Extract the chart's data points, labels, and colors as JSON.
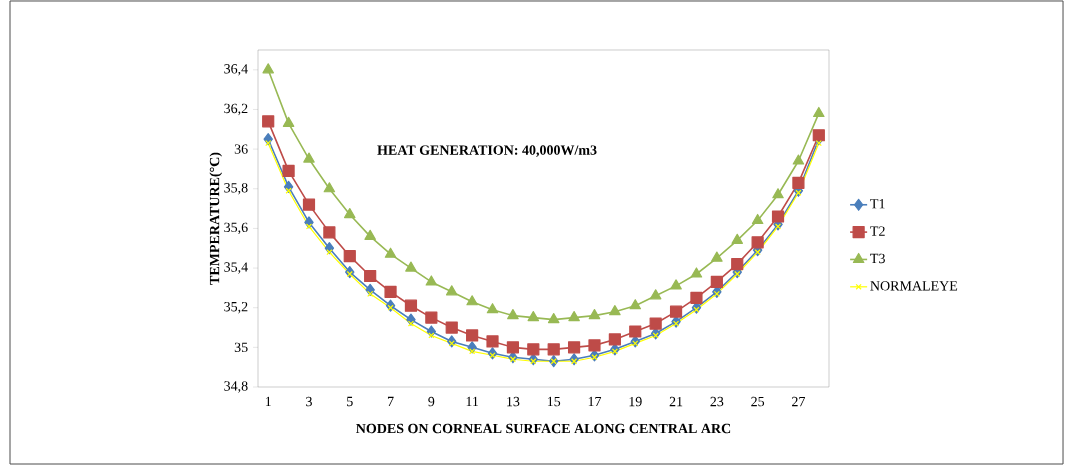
{
  "chart_data": {
    "type": "line",
    "xlabel": "NODES ON CORNEAL SURFACE ALONG CENTRAL ARC",
    "ylabel": "TEMPERATURE(°C)",
    "annotations": [
      "HEAT GENERATION: 40,000W/m3"
    ],
    "categories": [
      "1",
      null,
      "3",
      null,
      "5",
      null,
      "7",
      null,
      "9",
      null,
      "11",
      null,
      "13",
      null,
      "15",
      null,
      "17",
      null,
      "19",
      null,
      "21",
      null,
      "23",
      null,
      "25",
      null,
      "27",
      null
    ],
    "ylim": [
      34.8,
      36.5
    ],
    "yticks": [
      {
        "value": 34.8,
        "label": "34,8"
      },
      35,
      {
        "value": 35.2,
        "label": "35,2"
      },
      {
        "value": 35.4,
        "label": "35,4"
      },
      {
        "value": 35.6,
        "label": "35,6"
      },
      {
        "value": 35.8,
        "label": "35,8"
      },
      36,
      {
        "value": 36.2,
        "label": "36,2"
      },
      {
        "value": 36.4,
        "label": "36,4"
      }
    ],
    "legend": "right",
    "grid": false,
    "series": [
      {
        "name": "T1",
        "color": "#4a7ebb",
        "marker": "diamond",
        "values": [
          36.05,
          35.81,
          35.63,
          35.5,
          35.38,
          35.29,
          35.21,
          35.14,
          35.08,
          35.03,
          35.0,
          34.97,
          34.95,
          34.94,
          34.93,
          34.94,
          34.96,
          34.99,
          35.03,
          35.07,
          35.13,
          35.2,
          35.28,
          35.38,
          35.49,
          35.62,
          35.79,
          36.05
        ]
      },
      {
        "name": "T2",
        "color": "#be4b48",
        "marker": "square",
        "values": [
          36.14,
          35.89,
          35.72,
          35.58,
          35.46,
          35.36,
          35.28,
          35.21,
          35.15,
          35.1,
          35.06,
          35.03,
          35.0,
          34.99,
          34.99,
          35.0,
          35.01,
          35.04,
          35.08,
          35.12,
          35.18,
          35.25,
          35.33,
          35.42,
          35.53,
          35.66,
          35.83,
          36.07
        ]
      },
      {
        "name": "T3",
        "color": "#98b954",
        "marker": "triangle",
        "values": [
          36.4,
          36.13,
          35.95,
          35.8,
          35.67,
          35.56,
          35.47,
          35.4,
          35.33,
          35.28,
          35.23,
          35.19,
          35.16,
          35.15,
          35.14,
          35.15,
          35.16,
          35.18,
          35.21,
          35.26,
          35.31,
          35.37,
          35.45,
          35.54,
          35.64,
          35.77,
          35.94,
          36.18
        ]
      },
      {
        "name": "NORMALEYE",
        "color": "#ffff00",
        "marker": "cross",
        "values": [
          36.03,
          35.79,
          35.61,
          35.48,
          35.37,
          35.27,
          35.2,
          35.12,
          35.06,
          35.02,
          34.98,
          34.96,
          34.94,
          34.93,
          34.93,
          34.93,
          34.95,
          34.98,
          35.02,
          35.06,
          35.12,
          35.19,
          35.27,
          35.37,
          35.48,
          35.61,
          35.78,
          36.03
        ]
      }
    ]
  }
}
